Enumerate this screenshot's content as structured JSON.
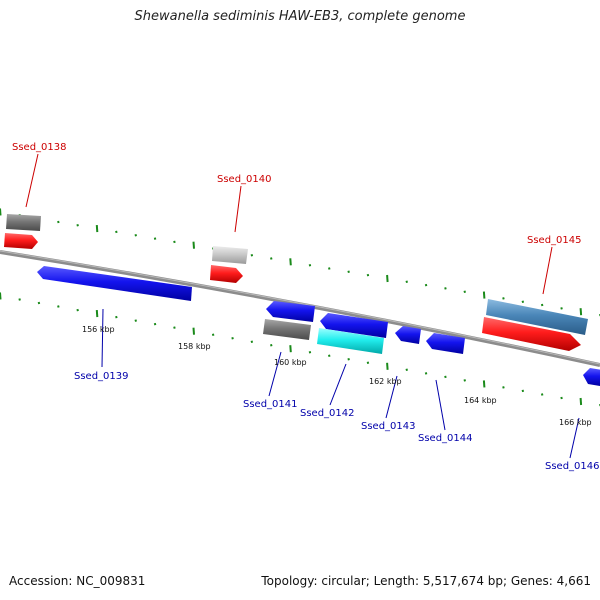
{
  "title": "Shewanella sediminis HAW-EB3, complete genome",
  "footer": {
    "accession": "Accession: NC_009831",
    "summary": "Topology: circular; Length: 5,517,674 bp; Genes: 4,661"
  },
  "colors": {
    "backbone": "#8c8c8c",
    "forward_label": "#cc0000",
    "reverse_label": "#0000aa",
    "tick_green": "#1a8a1a",
    "red": "#ff2020",
    "blue": "#1010ee",
    "dark_gray": "#707070",
    "light_gray": "#c8c8c8",
    "cyan": "#22eeee",
    "steel_blue": "#4a86b8"
  },
  "scale_labels": [
    "156 kbp",
    "158 kbp",
    "160 kbp",
    "162 kbp",
    "164 kbp",
    "166 kbp"
  ],
  "genes": [
    {
      "label": "Ssed_0138",
      "strand": "forward",
      "color": "red"
    },
    {
      "label": "Ssed_0139",
      "strand": "reverse",
      "color": "blue"
    },
    {
      "label": "Ssed_0140",
      "strand": "forward",
      "color": "red"
    },
    {
      "label": "Ssed_0141",
      "strand": "reverse",
      "color": "blue"
    },
    {
      "label": "Ssed_0142",
      "strand": "reverse",
      "color": "blue"
    },
    {
      "label": "Ssed_0143",
      "strand": "reverse",
      "color": "blue"
    },
    {
      "label": "Ssed_0144",
      "strand": "reverse",
      "color": "blue"
    },
    {
      "label": "Ssed_0145",
      "strand": "forward",
      "color": "red"
    },
    {
      "label": "Ssed_0146",
      "strand": "reverse",
      "color": "blue"
    }
  ]
}
